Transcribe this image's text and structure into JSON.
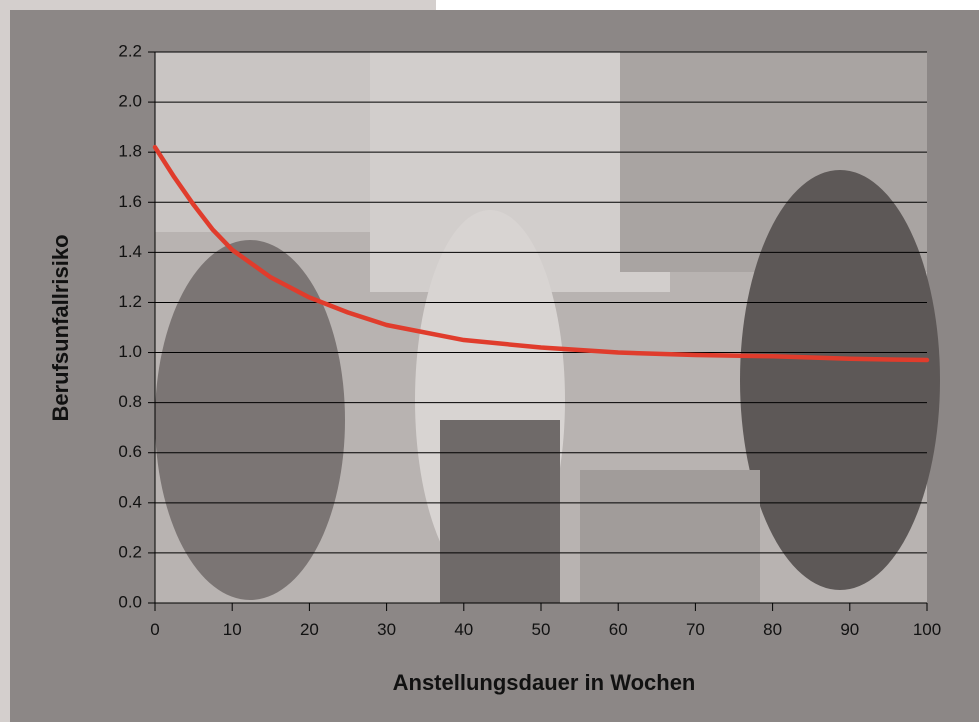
{
  "chart_data": {
    "type": "line",
    "xlabel": "Anstellungsdauer in Wochen",
    "ylabel": "Berufsunfallrisiko",
    "x": [
      0,
      2.5,
      5,
      7.5,
      10,
      15,
      20,
      25,
      30,
      40,
      50,
      60,
      70,
      80,
      90,
      100
    ],
    "series": [
      {
        "color": "#e03c2c",
        "values": [
          1.82,
          1.7,
          1.59,
          1.49,
          1.41,
          1.3,
          1.22,
          1.16,
          1.11,
          1.05,
          1.02,
          1.0,
          0.99,
          0.985,
          0.975,
          0.97
        ]
      }
    ],
    "xlim": [
      0,
      100
    ],
    "xticks": [
      0,
      10,
      20,
      30,
      40,
      50,
      60,
      70,
      80,
      90,
      100
    ],
    "ylim": [
      0,
      2.2
    ],
    "yticks": [
      {
        "value": 0,
        "label": "0.0"
      },
      0.2,
      0.4,
      0.6,
      0.8,
      {
        "value": 1,
        "label": "1.0"
      },
      1.2,
      1.4,
      1.6,
      1.8,
      {
        "value": 2,
        "label": "2.0"
      },
      2.2
    ],
    "grid": true
  }
}
